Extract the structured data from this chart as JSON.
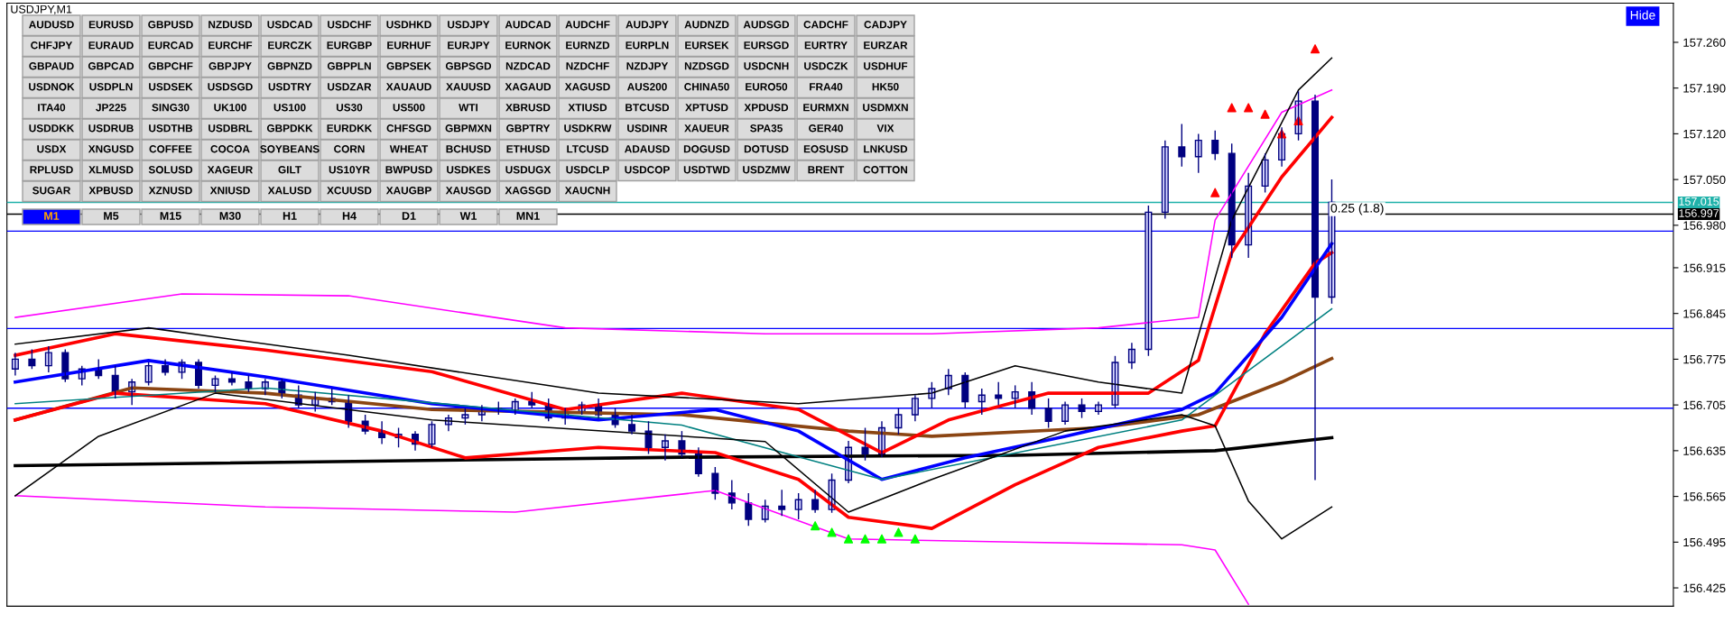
{
  "chart_data": {
    "type": "candlestick",
    "title": "USDJPY,M1",
    "categories": [
      null,
      null,
      null,
      null,
      null,
      null,
      null,
      null,
      null,
      null,
      null,
      null,
      null,
      null,
      null,
      null,
      null,
      null,
      null,
      null,
      null,
      null,
      null,
      null,
      null,
      null,
      null,
      null,
      null,
      null,
      null,
      null,
      null,
      null,
      null,
      null,
      null,
      null,
      null,
      null,
      null,
      null,
      null,
      null,
      null,
      null,
      null,
      null,
      null,
      null,
      null,
      null,
      null,
      null,
      null,
      null,
      null,
      null,
      null,
      null,
      null,
      null,
      null,
      null,
      null,
      null,
      null,
      null,
      null,
      null,
      null,
      null,
      null,
      null,
      null,
      null,
      null,
      null,
      null,
      null,
      null,
      null,
      null,
      null,
      null,
      null,
      null,
      null,
      null,
      null,
      null,
      null,
      null,
      null,
      null,
      null,
      null,
      null,
      null,
      null
    ],
    "ohlc": [
      [
        156.76,
        156.785,
        156.75,
        156.775
      ],
      [
        156.775,
        156.79,
        156.76,
        156.765
      ],
      [
        156.765,
        156.795,
        156.755,
        156.785
      ],
      [
        156.785,
        156.79,
        156.74,
        156.745
      ],
      [
        156.745,
        156.765,
        156.735,
        156.76
      ],
      [
        156.76,
        156.775,
        156.745,
        156.75
      ],
      [
        156.75,
        156.765,
        156.715,
        156.725
      ],
      [
        156.725,
        156.745,
        156.705,
        156.74
      ],
      [
        156.74,
        156.77,
        156.735,
        156.765
      ],
      [
        156.765,
        156.775,
        156.75,
        156.755
      ],
      [
        156.755,
        156.775,
        156.745,
        156.77
      ],
      [
        156.77,
        156.775,
        156.73,
        156.735
      ],
      [
        156.735,
        156.75,
        156.725,
        156.745
      ],
      [
        156.745,
        156.755,
        156.735,
        156.74
      ],
      [
        156.74,
        156.75,
        156.725,
        156.73
      ],
      [
        156.73,
        156.745,
        156.72,
        156.74
      ],
      [
        156.74,
        156.745,
        156.715,
        156.72
      ],
      [
        156.72,
        156.735,
        156.7,
        156.705
      ],
      [
        156.705,
        156.725,
        156.695,
        156.715
      ],
      [
        156.715,
        156.73,
        156.705,
        156.71
      ],
      [
        156.71,
        156.72,
        156.67,
        156.68
      ],
      [
        156.68,
        156.69,
        156.66,
        156.665
      ],
      [
        156.665,
        156.68,
        156.645,
        156.655
      ],
      [
        156.655,
        156.67,
        156.64,
        156.66
      ],
      [
        156.66,
        156.665,
        156.635,
        156.645
      ],
      [
        156.645,
        156.68,
        156.64,
        156.675
      ],
      [
        156.675,
        156.69,
        156.665,
        156.685
      ],
      [
        156.685,
        156.7,
        156.675,
        156.69
      ],
      [
        156.69,
        156.705,
        156.68,
        156.7
      ],
      [
        156.7,
        156.71,
        156.69,
        156.695
      ],
      [
        156.695,
        156.715,
        156.69,
        156.71
      ],
      [
        156.71,
        156.725,
        156.7,
        156.705
      ],
      [
        156.705,
        156.715,
        156.68,
        156.685
      ],
      [
        156.685,
        156.7,
        156.675,
        156.695
      ],
      [
        156.695,
        156.71,
        156.69,
        156.705
      ],
      [
        156.705,
        156.715,
        156.685,
        156.69
      ],
      [
        156.69,
        156.7,
        156.67,
        156.675
      ],
      [
        156.675,
        156.69,
        156.66,
        156.665
      ],
      [
        156.665,
        156.68,
        156.63,
        156.64
      ],
      [
        156.64,
        156.66,
        156.62,
        156.65
      ],
      [
        156.65,
        156.665,
        156.625,
        156.63
      ],
      [
        156.63,
        156.64,
        156.595,
        156.6
      ],
      [
        156.6,
        156.61,
        156.56,
        156.57
      ],
      [
        156.57,
        156.59,
        156.545,
        156.555
      ],
      [
        156.555,
        156.57,
        156.52,
        156.53
      ],
      [
        156.53,
        156.56,
        156.525,
        156.55
      ],
      [
        156.55,
        156.575,
        156.535,
        156.545
      ],
      [
        156.545,
        156.57,
        156.53,
        156.56
      ],
      [
        156.56,
        156.575,
        156.54,
        156.545
      ],
      [
        156.545,
        156.6,
        156.54,
        156.59
      ],
      [
        156.59,
        156.65,
        156.585,
        156.64
      ],
      [
        156.64,
        156.67,
        156.62,
        156.63
      ],
      [
        156.63,
        156.68,
        156.625,
        156.67
      ],
      [
        156.67,
        156.7,
        156.66,
        156.69
      ],
      [
        156.69,
        156.72,
        156.68,
        156.715
      ],
      [
        156.715,
        156.74,
        156.7,
        156.73
      ],
      [
        156.73,
        156.76,
        156.72,
        156.75
      ],
      [
        156.75,
        156.755,
        156.7,
        156.71
      ],
      [
        156.71,
        156.73,
        156.69,
        156.72
      ],
      [
        156.72,
        156.74,
        156.705,
        156.715
      ],
      [
        156.715,
        156.735,
        156.7,
        156.725
      ],
      [
        156.725,
        156.74,
        156.69,
        156.7
      ],
      [
        156.7,
        156.715,
        156.67,
        156.68
      ],
      [
        156.68,
        156.71,
        156.675,
        156.705
      ],
      [
        156.705,
        156.715,
        156.685,
        156.695
      ],
      [
        156.695,
        156.71,
        156.69,
        156.705
      ],
      [
        156.705,
        156.78,
        156.7,
        156.77
      ],
      [
        156.77,
        156.8,
        156.76,
        156.79
      ],
      [
        156.79,
        157.01,
        156.78,
        157.0
      ],
      [
        157.0,
        157.11,
        156.99,
        157.1
      ],
      [
        157.1,
        157.135,
        157.07,
        157.085
      ],
      [
        157.085,
        157.12,
        157.06,
        157.11
      ],
      [
        157.11,
        157.125,
        157.08,
        157.09
      ],
      [
        157.09,
        157.105,
        156.93,
        156.95
      ],
      [
        156.95,
        157.06,
        156.93,
        157.04
      ],
      [
        157.04,
        157.09,
        157.03,
        157.08
      ],
      [
        157.08,
        157.13,
        157.07,
        157.12
      ],
      [
        157.12,
        157.185,
        157.11,
        157.17
      ],
      [
        157.17,
        157.18,
        156.59,
        156.87
      ],
      [
        156.87,
        157.05,
        156.86,
        157.015
      ],
      null,
      null,
      null,
      null,
      null,
      null,
      null,
      null,
      null,
      null,
      null,
      null,
      null,
      null,
      null,
      null,
      null,
      null,
      null,
      null
    ],
    "color": "#000080",
    "series": [
      {
        "type": "line",
        "color": "#000000",
        "values": [
          156.612,
          null,
          null,
          null,
          null,
          null,
          null,
          null,
          null,
          null,
          null,
          null,
          null,
          null,
          null,
          null,
          null,
          null,
          null,
          null,
          null,
          null,
          null,
          null,
          null,
          null,
          null,
          null,
          null,
          null,
          null,
          null,
          null,
          null,
          null,
          null,
          null,
          null,
          null,
          null,
          156.625,
          null,
          null,
          null,
          null,
          null,
          null,
          null,
          null,
          null,
          null,
          null,
          null,
          null,
          null,
          null,
          null,
          null,
          null,
          null,
          156.628,
          null,
          null,
          null,
          null,
          null,
          null,
          null,
          null,
          null,
          null,
          null,
          156.635,
          null,
          null,
          null,
          null,
          null,
          null,
          156.655,
          null,
          null,
          null,
          null,
          null,
          null,
          null,
          null,
          null,
          null,
          null,
          null,
          null,
          null,
          null,
          null,
          null,
          null,
          null,
          null
        ]
      },
      {
        "type": "line",
        "color": "#8b4513",
        "values": [
          156.682,
          null,
          null,
          null,
          null,
          null,
          null,
          156.731,
          null,
          null,
          null,
          null,
          null,
          null,
          null,
          156.723,
          null,
          null,
          null,
          null,
          null,
          null,
          null,
          null,
          null,
          156.698,
          null,
          null,
          null,
          null,
          null,
          null,
          null,
          null,
          null,
          null,
          null,
          null,
          null,
          null,
          156.69,
          null,
          null,
          null,
          null,
          null,
          null,
          null,
          null,
          null,
          156.665,
          null,
          null,
          null,
          null,
          156.657,
          null,
          null,
          null,
          null,
          null,
          null,
          null,
          null,
          null,
          156.67,
          null,
          null,
          null,
          null,
          null,
          156.69,
          null,
          null,
          null,
          null,
          156.74,
          null,
          null,
          156.776,
          null,
          null,
          null,
          null,
          null,
          null,
          null,
          null,
          null,
          null,
          null,
          null,
          null,
          null,
          null,
          null,
          null,
          null,
          null,
          null
        ]
      },
      {
        "type": "line",
        "color": "#ff0000",
        "values": [
          156.781,
          null,
          null,
          null,
          null,
          null,
          156.814,
          null,
          null,
          null,
          null,
          null,
          null,
          null,
          null,
          156.789,
          null,
          null,
          null,
          null,
          null,
          null,
          null,
          null,
          null,
          156.756,
          null,
          null,
          null,
          null,
          null,
          null,
          null,
          156.698,
          null,
          null,
          null,
          null,
          null,
          null,
          156.723,
          null,
          null,
          null,
          null,
          null,
          null,
          156.698,
          null,
          null,
          null,
          null,
          156.632,
          null,
          null,
          null,
          156.682,
          null,
          null,
          null,
          null,
          null,
          156.723,
          null,
          null,
          null,
          null,
          null,
          156.723,
          null,
          null,
          156.773,
          null,
          156.938,
          null,
          null,
          157.054,
          null,
          null,
          157.145,
          null,
          null,
          null,
          null,
          null,
          null,
          null,
          null,
          null,
          null,
          null,
          null,
          null,
          null,
          null,
          null,
          null,
          null,
          null,
          null
        ]
      },
      {
        "type": "line",
        "color": "#ff0000",
        "values": [
          156.682,
          null,
          null,
          null,
          null,
          null,
          156.723,
          null,
          null,
          null,
          null,
          null,
          null,
          null,
          null,
          156.707,
          null,
          null,
          null,
          null,
          null,
          null,
          156.665,
          null,
          null,
          null,
          null,
          156.624,
          null,
          null,
          null,
          null,
          null,
          null,
          null,
          156.64,
          null,
          null,
          null,
          null,
          null,
          null,
          156.632,
          null,
          null,
          null,
          null,
          156.591,
          null,
          null,
          156.533,
          null,
          null,
          null,
          null,
          156.516,
          null,
          null,
          null,
          null,
          156.583,
          null,
          null,
          null,
          null,
          156.64,
          null,
          null,
          null,
          null,
          156.665,
          null,
          156.673,
          null,
          null,
          156.814,
          null,
          null,
          156.922,
          156.938,
          null,
          null,
          null,
          null,
          null,
          null,
          null,
          null,
          null,
          null,
          null,
          null,
          null,
          null,
          null,
          null,
          null,
          null,
          null,
          null
        ]
      },
      {
        "type": "line",
        "color": "#0000ff",
        "values": [
          156.74,
          null,
          null,
          null,
          null,
          null,
          null,
          null,
          156.773,
          null,
          null,
          null,
          null,
          null,
          null,
          156.748,
          null,
          null,
          null,
          null,
          null,
          null,
          null,
          null,
          null,
          156.707,
          null,
          null,
          null,
          null,
          null,
          null,
          null,
          null,
          null,
          156.682,
          null,
          null,
          null,
          null,
          null,
          null,
          156.698,
          null,
          null,
          null,
          null,
          156.665,
          null,
          null,
          null,
          null,
          156.591,
          null,
          null,
          null,
          null,
          156.624,
          null,
          null,
          null,
          null,
          null,
          156.657,
          null,
          null,
          null,
          null,
          null,
          null,
          156.698,
          null,
          156.723,
          null,
          null,
          null,
          156.839,
          null,
          null,
          156.952,
          null,
          null,
          null,
          null,
          null,
          null,
          null,
          null,
          null,
          null,
          null,
          null,
          null,
          null,
          null,
          null,
          null,
          null,
          null,
          null
        ]
      },
      {
        "type": "line",
        "color": "#008080",
        "values": [
          156.707,
          null,
          null,
          null,
          null,
          null,
          null,
          null,
          null,
          null,
          null,
          null,
          null,
          null,
          null,
          156.731,
          null,
          null,
          null,
          null,
          null,
          null,
          null,
          null,
          null,
          null,
          null,
          null,
          null,
          null,
          null,
          null,
          null,
          null,
          null,
          null,
          null,
          null,
          null,
          null,
          156.674,
          null,
          null,
          null,
          null,
          null,
          null,
          null,
          null,
          null,
          null,
          null,
          156.591,
          null,
          null,
          null,
          null,
          null,
          null,
          null,
          null,
          null,
          null,
          null,
          null,
          null,
          null,
          null,
          null,
          null,
          156.682,
          null,
          null,
          null,
          null,
          null,
          null,
          null,
          null,
          156.852,
          null,
          null,
          null,
          null,
          null,
          null,
          null,
          null,
          null,
          null,
          null,
          null,
          null,
          null,
          null,
          null,
          null,
          null,
          null,
          null
        ]
      },
      {
        "type": "line",
        "color": "#ff00ff",
        "values": [
          156.839,
          null,
          null,
          null,
          null,
          null,
          null,
          null,
          null,
          null,
          156.875,
          null,
          null,
          null,
          null,
          null,
          null,
          null,
          null,
          null,
          156.872,
          null,
          null,
          null,
          null,
          null,
          null,
          null,
          null,
          null,
          null,
          null,
          null,
          156.823,
          null,
          null,
          null,
          null,
          null,
          null,
          null,
          null,
          null,
          null,
          null,
          156.814,
          null,
          null,
          null,
          null,
          null,
          null,
          null,
          null,
          null,
          156.814,
          null,
          null,
          null,
          null,
          null,
          null,
          null,
          null,
          null,
          156.823,
          null,
          null,
          null,
          null,
          null,
          156.839,
          156.988,
          null,
          null,
          null,
          157.153,
          null,
          null,
          157.187,
          null,
          null,
          null,
          null,
          null,
          null,
          null,
          null,
          null,
          null,
          null,
          null,
          null,
          null,
          null,
          null,
          null,
          null,
          null,
          null
        ]
      },
      {
        "type": "line",
        "color": "#ff00ff",
        "values": [
          156.566,
          null,
          null,
          null,
          null,
          null,
          null,
          null,
          null,
          null,
          null,
          null,
          null,
          null,
          null,
          156.549,
          null,
          null,
          null,
          null,
          null,
          null,
          null,
          null,
          null,
          null,
          null,
          null,
          null,
          null,
          156.541,
          null,
          null,
          null,
          null,
          null,
          null,
          null,
          null,
          null,
          null,
          null,
          156.574,
          null,
          null,
          null,
          null,
          null,
          null,
          null,
          156.5,
          null,
          null,
          null,
          null,
          null,
          null,
          null,
          null,
          null,
          156.495,
          null,
          null,
          null,
          null,
          null,
          null,
          null,
          null,
          null,
          156.491,
          null,
          156.483,
          null,
          156.4,
          null,
          null,
          null,
          null,
          null,
          null,
          null,
          null,
          null,
          null,
          null,
          null,
          null,
          null,
          null,
          null,
          null,
          null,
          null,
          null,
          null,
          null,
          null,
          null,
          null
        ]
      },
      {
        "type": "line",
        "color": "#000000",
        "values": [
          156.798,
          null,
          null,
          null,
          null,
          null,
          null,
          null,
          156.823,
          null,
          null,
          null,
          null,
          null,
          null,
          null,
          null,
          null,
          null,
          null,
          156.781,
          null,
          null,
          null,
          null,
          null,
          null,
          null,
          null,
          null,
          null,
          null,
          null,
          null,
          null,
          156.723,
          null,
          null,
          null,
          null,
          null,
          null,
          null,
          null,
          null,
          null,
          null,
          156.707,
          null,
          null,
          null,
          null,
          null,
          null,
          null,
          156.723,
          null,
          null,
          null,
          null,
          156.765,
          null,
          null,
          null,
          null,
          156.74,
          null,
          null,
          null,
          null,
          156.723,
          null,
          null,
          156.988,
          null,
          null,
          null,
          157.187,
          null,
          157.236,
          null,
          null,
          null,
          null,
          null,
          null,
          null,
          null,
          null,
          null,
          null,
          null,
          null,
          null,
          null,
          null,
          null,
          null,
          null,
          null
        ]
      },
      {
        "type": "line",
        "color": "#000000",
        "values": [
          156.566,
          null,
          null,
          null,
          null,
          156.657,
          null,
          null,
          null,
          null,
          null,
          null,
          156.723,
          null,
          null,
          null,
          null,
          null,
          null,
          null,
          null,
          null,
          null,
          null,
          null,
          156.682,
          null,
          null,
          null,
          null,
          null,
          null,
          null,
          null,
          null,
          null,
          null,
          null,
          null,
          null,
          null,
          null,
          null,
          null,
          null,
          156.649,
          null,
          null,
          null,
          null,
          156.541,
          null,
          null,
          null,
          null,
          156.591,
          null,
          null,
          null,
          null,
          null,
          null,
          null,
          156.665,
          null,
          null,
          null,
          null,
          null,
          null,
          156.69,
          null,
          156.673,
          null,
          156.558,
          null,
          156.5,
          null,
          null,
          156.549,
          null,
          null,
          null,
          null,
          null,
          null,
          null,
          null,
          null,
          null,
          null,
          null,
          null,
          null,
          null,
          null,
          null,
          null,
          null,
          null
        ]
      },
      {
        "type": "scatter",
        "color": "#ff0000",
        "marker": "triangle",
        "values": [
          null,
          null,
          null,
          null,
          null,
          null,
          null,
          null,
          null,
          null,
          null,
          null,
          null,
          null,
          null,
          null,
          null,
          null,
          null,
          null,
          null,
          null,
          null,
          null,
          null,
          null,
          null,
          null,
          null,
          null,
          null,
          null,
          null,
          null,
          null,
          null,
          null,
          null,
          null,
          null,
          null,
          null,
          null,
          null,
          null,
          null,
          null,
          null,
          null,
          null,
          null,
          null,
          null,
          null,
          null,
          null,
          null,
          null,
          null,
          null,
          null,
          null,
          null,
          null,
          null,
          null,
          null,
          null,
          null,
          null,
          null,
          null,
          157.03,
          157.16,
          157.16,
          157.15,
          157.12,
          157.14,
          157.25,
          null,
          null,
          null,
          null,
          null,
          null,
          null,
          null,
          null,
          null,
          null,
          null,
          null,
          null,
          null,
          null,
          null,
          null,
          null,
          null,
          null
        ]
      },
      {
        "type": "scatter",
        "color": "#00ff00",
        "marker": "triangle",
        "values": [
          null,
          null,
          null,
          null,
          null,
          null,
          null,
          null,
          null,
          null,
          null,
          null,
          null,
          null,
          null,
          null,
          null,
          null,
          null,
          null,
          null,
          null,
          null,
          null,
          null,
          null,
          null,
          null,
          null,
          null,
          null,
          null,
          null,
          null,
          null,
          null,
          null,
          null,
          null,
          null,
          null,
          null,
          null,
          null,
          null,
          null,
          null,
          null,
          156.52,
          156.51,
          156.5,
          156.5,
          156.5,
          156.51,
          156.5,
          null,
          null,
          null,
          null,
          null,
          null,
          null,
          null,
          null,
          null,
          null,
          null,
          null,
          null,
          null,
          null,
          null,
          null,
          null,
          null,
          null,
          null,
          null,
          null,
          null,
          null,
          null,
          null,
          null,
          null,
          null,
          null,
          null,
          null,
          null,
          null,
          null,
          null,
          null,
          null,
          null,
          null,
          null,
          null,
          null
        ]
      }
    ],
    "ylim": [
      156.397,
      157.32
    ],
    "yticks": [
      {
        "value": 157.26,
        "label": "157.260"
      },
      {
        "value": 157.19,
        "label": "157.190"
      },
      {
        "value": 157.12,
        "label": "157.120"
      },
      {
        "value": 157.05,
        "label": "157.050"
      },
      {
        "value": 156.98,
        "label": "156.980"
      },
      156.915,
      156.845,
      156.775,
      156.705,
      156.635,
      156.565,
      156.495,
      156.425
    ],
    "tick_labels": "y",
    "grid": false,
    "ref_lines": [
      {
        "axis": "y",
        "value": 157.015,
        "label": "157.015",
        "color": "#20b2aa"
      },
      {
        "axis": "y",
        "value": 156.997,
        "label": "156.997",
        "color": "#000000"
      },
      {
        "axis": "y",
        "value": 156.971,
        "color": "#0000ff"
      },
      {
        "axis": "y",
        "value": 156.822,
        "color": "#0000ff"
      },
      {
        "axis": "y",
        "value": 156.7,
        "color": "#0000ff"
      }
    ],
    "annotations": [
      "0.25 (1.8)",
      "Hide",
      "AUDUSD",
      "EURUSD",
      "GBPUSD",
      "NZDUSD",
      "USDCAD",
      "USDCHF",
      "USDHKD",
      "USDJPY",
      "AUDCAD",
      "AUDCHF",
      "AUDJPY",
      "AUDNZD",
      "AUDSGD",
      "CADCHF",
      "CADJPY",
      "CHFJPY",
      "EURAUD",
      "EURCAD",
      "EURCHF",
      "EURCZK",
      "EURGBP",
      "EURHUF",
      "EURJPY",
      "EURNOK",
      "EURNZD",
      "EURPLN",
      "EURSEK",
      "EURSGD",
      "EURTRY",
      "EURZAR",
      "GBPAUD",
      "GBPCAD",
      "GBPCHF",
      "GBPJPY",
      "GBPNZD",
      "GBPPLN",
      "GBPSEK",
      "GBPSGD",
      "NZDCAD",
      "NZDCHF",
      "NZDJPY",
      "NZDSGD",
      "USDCNH",
      "USDCZK",
      "USDHUF",
      "USDNOK",
      "USDPLN",
      "USDSEK",
      "USDSGD",
      "USDTRY",
      "USDZAR",
      "XAUAUD",
      "XAUUSD",
      "XAGAUD",
      "XAGUSD",
      "AUS200",
      "CHINA50",
      "EURO50",
      "FRA40",
      "HK50",
      "ITA40",
      "JP225",
      "SING30",
      "UK100",
      "US100",
      "US30",
      "US500",
      "WTI",
      "XBRUSD",
      "XTIUSD",
      "BTCUSD",
      "XPTUSD",
      "XPDUSD",
      "EURMXN",
      "USDMXN",
      "USDDKK",
      "USDRUB",
      "USDTHB",
      "USDBRL",
      "GBPDKK",
      "EURDKK",
      "CHFSGD",
      "GBPMXN",
      "GBPTRY",
      "USDKRW",
      "USDINR",
      "XAUEUR",
      "SPA35",
      "GER40",
      "VIX",
      "USDX",
      "XNGUSD",
      "COFFEE",
      "COCOA",
      "SOYBEANS",
      "CORN",
      "WHEAT",
      "BCHUSD",
      "ETHUSD",
      "LTCUSD",
      "ADAUSD",
      "DOGUSD",
      "DOTUSD",
      "EOSUSD",
      "LNKUSD",
      "RPLUSD",
      "XLMUSD",
      "SOLUSD",
      "XAGEUR",
      "GILT",
      "US10YR",
      "BWPUSD",
      "USDKES",
      "USDUGX",
      "USDCLP",
      "USDCOP",
      "USDTWD",
      "USDZMW",
      "BRENT",
      "COTTON",
      "SUGAR",
      "XPBUSD",
      "XZNUSD",
      "XNIUSD",
      "XALUSD",
      "XCUUSD",
      "XAUGBP",
      "XAUSGD",
      "XAGSGD",
      "XAUCNH",
      "M1",
      "M5",
      "M15",
      "M30",
      "H1",
      "H4",
      "D1",
      "W1",
      "MN1"
    ]
  }
}
